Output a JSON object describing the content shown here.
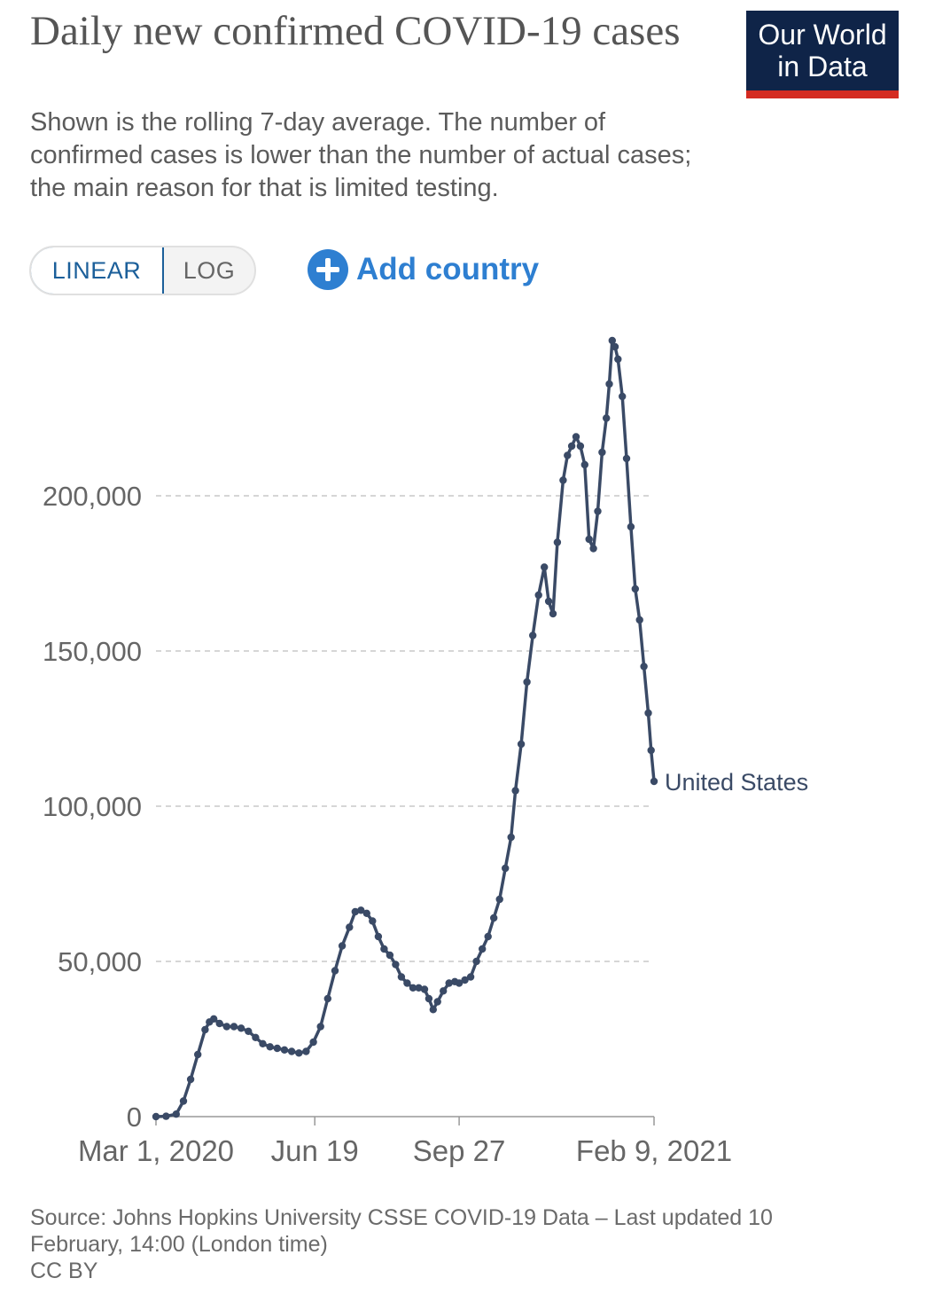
{
  "header": {
    "title": "Daily new confirmed COVID-19 cases",
    "subtitle": "Shown is the rolling 7-day average. The number of confirmed cases is lower than the number of actual cases; the main reason for that is limited testing."
  },
  "logo": {
    "line1": "Our World",
    "line2": "in Data",
    "bg": "#0f2448",
    "accent": "#d42b21"
  },
  "controls": {
    "linear_label": "LINEAR",
    "log_label": "LOG",
    "selected": "LINEAR",
    "add_country_label": "Add country",
    "add_country_icon": "plus-circle-icon",
    "accent": "#2e7fd1"
  },
  "chart_data": {
    "type": "line",
    "title": "Daily new confirmed COVID-19 cases",
    "xlabel": "",
    "ylabel": "",
    "x_ticks": [
      "Mar 1, 2020",
      "Jun 19",
      "Sep 27",
      "Feb 9, 2021"
    ],
    "y_ticks": [
      0,
      50000,
      100000,
      150000,
      200000
    ],
    "y_tick_labels": [
      "0",
      "50,000",
      "100,000",
      "150,000",
      "200,000"
    ],
    "ylim": [
      0,
      250000
    ],
    "xlim": [
      "2020-03-01",
      "2021-02-09"
    ],
    "grid": "horizontal dashed",
    "line_color": "#3a4a66",
    "series": [
      {
        "name": "United States",
        "points": [
          [
            "2020-03-01",
            0
          ],
          [
            "2020-03-08",
            100
          ],
          [
            "2020-03-15",
            800
          ],
          [
            "2020-03-20",
            5000
          ],
          [
            "2020-03-25",
            12000
          ],
          [
            "2020-03-30",
            20000
          ],
          [
            "2020-04-04",
            28000
          ],
          [
            "2020-04-07",
            30500
          ],
          [
            "2020-04-10",
            31500
          ],
          [
            "2020-04-14",
            30000
          ],
          [
            "2020-04-19",
            29000
          ],
          [
            "2020-04-24",
            29000
          ],
          [
            "2020-04-29",
            28500
          ],
          [
            "2020-05-04",
            27500
          ],
          [
            "2020-05-09",
            25500
          ],
          [
            "2020-05-14",
            23500
          ],
          [
            "2020-05-19",
            22500
          ],
          [
            "2020-05-24",
            22000
          ],
          [
            "2020-05-29",
            21500
          ],
          [
            "2020-06-03",
            21000
          ],
          [
            "2020-06-08",
            20500
          ],
          [
            "2020-06-13",
            21000
          ],
          [
            "2020-06-18",
            24000
          ],
          [
            "2020-06-23",
            29000
          ],
          [
            "2020-06-28",
            38000
          ],
          [
            "2020-07-03",
            47000
          ],
          [
            "2020-07-08",
            55000
          ],
          [
            "2020-07-13",
            61000
          ],
          [
            "2020-07-17",
            66000
          ],
          [
            "2020-07-21",
            66500
          ],
          [
            "2020-07-25",
            65500
          ],
          [
            "2020-07-29",
            63000
          ],
          [
            "2020-08-02",
            58000
          ],
          [
            "2020-08-06",
            54000
          ],
          [
            "2020-08-10",
            52000
          ],
          [
            "2020-08-14",
            49000
          ],
          [
            "2020-08-18",
            45000
          ],
          [
            "2020-08-22",
            43000
          ],
          [
            "2020-08-26",
            41500
          ],
          [
            "2020-08-30",
            41500
          ],
          [
            "2020-09-03",
            41000
          ],
          [
            "2020-09-06",
            38000
          ],
          [
            "2020-09-09",
            34500
          ],
          [
            "2020-09-12",
            37000
          ],
          [
            "2020-09-16",
            40500
          ],
          [
            "2020-09-20",
            43000
          ],
          [
            "2020-09-24",
            43500
          ],
          [
            "2020-09-27",
            43000
          ],
          [
            "2020-10-01",
            44000
          ],
          [
            "2020-10-05",
            45000
          ],
          [
            "2020-10-09",
            50000
          ],
          [
            "2020-10-13",
            54000
          ],
          [
            "2020-10-17",
            58000
          ],
          [
            "2020-10-21",
            64000
          ],
          [
            "2020-10-25",
            70000
          ],
          [
            "2020-10-29",
            80000
          ],
          [
            "2020-11-02",
            90000
          ],
          [
            "2020-11-05",
            105000
          ],
          [
            "2020-11-09",
            120000
          ],
          [
            "2020-11-13",
            140000
          ],
          [
            "2020-11-17",
            155000
          ],
          [
            "2020-11-21",
            168000
          ],
          [
            "2020-11-25",
            177000
          ],
          [
            "2020-11-28",
            166000
          ],
          [
            "2020-12-01",
            162000
          ],
          [
            "2020-12-04",
            185000
          ],
          [
            "2020-12-08",
            205000
          ],
          [
            "2020-12-11",
            213000
          ],
          [
            "2020-12-14",
            216000
          ],
          [
            "2020-12-17",
            219000
          ],
          [
            "2020-12-20",
            216000
          ],
          [
            "2020-12-23",
            210000
          ],
          [
            "2020-12-26",
            186000
          ],
          [
            "2020-12-29",
            183000
          ],
          [
            "2021-01-01",
            195000
          ],
          [
            "2021-01-04",
            214000
          ],
          [
            "2021-01-07",
            225000
          ],
          [
            "2021-01-09",
            236000
          ],
          [
            "2021-01-11",
            250000
          ],
          [
            "2021-01-13",
            248000
          ],
          [
            "2021-01-15",
            244000
          ],
          [
            "2021-01-18",
            232000
          ],
          [
            "2021-01-21",
            212000
          ],
          [
            "2021-01-24",
            190000
          ],
          [
            "2021-01-27",
            170000
          ],
          [
            "2021-01-30",
            160000
          ],
          [
            "2021-02-02",
            145000
          ],
          [
            "2021-02-05",
            130000
          ],
          [
            "2021-02-07",
            118000
          ],
          [
            "2021-02-09",
            108000
          ]
        ]
      }
    ],
    "end_label": "United States"
  },
  "footer": {
    "source_line1": "Source: Johns Hopkins University CSSE COVID-19 Data – Last updated 10",
    "source_line2": "February, 14:00 (London time)",
    "license": "CC BY"
  }
}
